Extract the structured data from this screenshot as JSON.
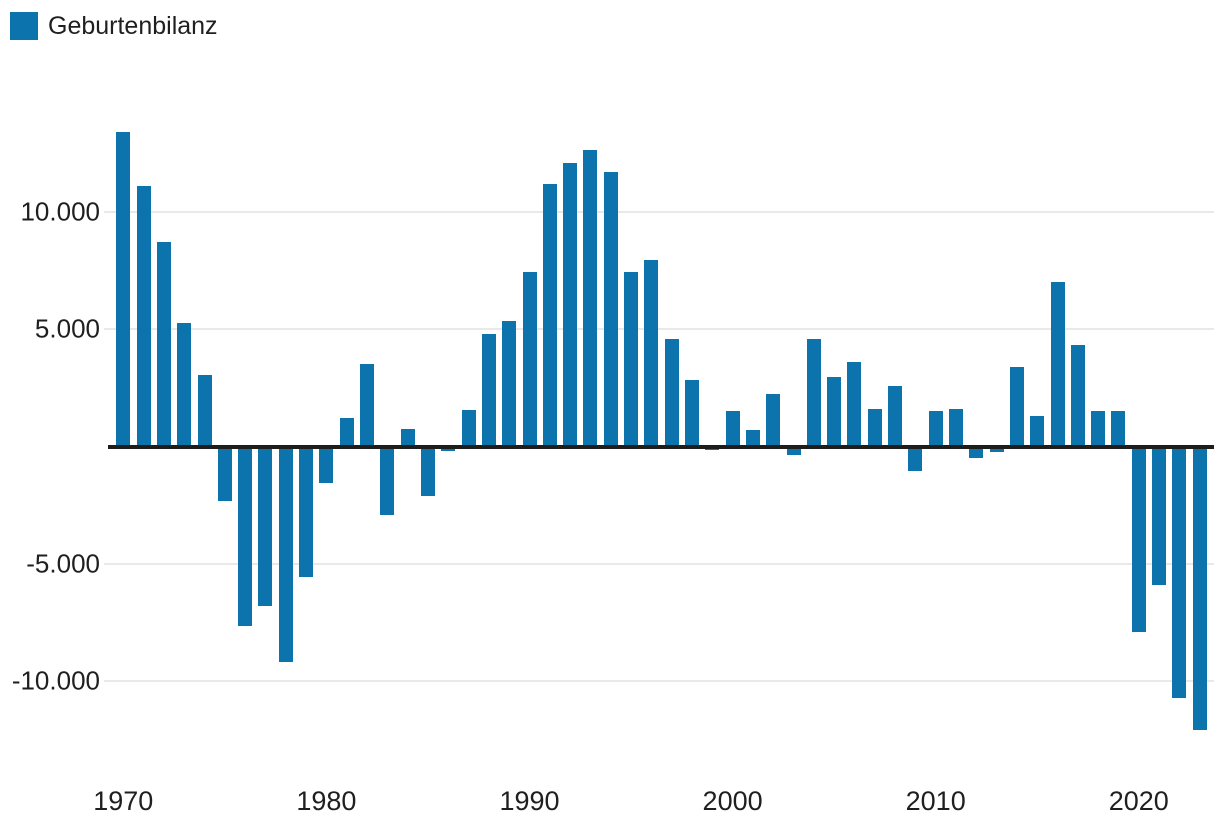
{
  "legend": {
    "label": "Geburtenbilanz",
    "swatch_color": "#0d73ad"
  },
  "colors": {
    "bar": "#0d73ad",
    "zero_axis": "#1d1d1b",
    "gridline": "#e9e9e9",
    "text": "#1f1f1f",
    "background": "#ffffff"
  },
  "chart_data": {
    "type": "bar",
    "title": "",
    "xlabel": "",
    "ylabel": "",
    "legend_position": "top-left",
    "grid": true,
    "series_name": "Geburtenbilanz",
    "x": [
      1970,
      1971,
      1972,
      1973,
      1974,
      1975,
      1976,
      1977,
      1978,
      1979,
      1980,
      1981,
      1982,
      1983,
      1984,
      1985,
      1986,
      1987,
      1988,
      1989,
      1990,
      1991,
      1992,
      1993,
      1994,
      1995,
      1996,
      1997,
      1998,
      1999,
      2000,
      2001,
      2002,
      2003,
      2004,
      2005,
      2006,
      2007,
      2008,
      2009,
      2010,
      2011,
      2012,
      2013,
      2014,
      2015,
      2016,
      2017,
      2018,
      2019,
      2020,
      2021,
      2022,
      2023
    ],
    "values": [
      13400,
      11100,
      8700,
      5250,
      3050,
      -2300,
      -7650,
      -6800,
      -9200,
      -5550,
      -1550,
      1200,
      3500,
      -2900,
      750,
      -2100,
      -200,
      1550,
      4800,
      5350,
      7450,
      11200,
      12100,
      12650,
      11700,
      7450,
      7950,
      4600,
      2850,
      -150,
      1500,
      700,
      2250,
      -350,
      4600,
      2950,
      3600,
      1600,
      2600,
      -1050,
      1500,
      1600,
      -500,
      -250,
      3400,
      1300,
      7000,
      4350,
      1500,
      1500,
      -7900,
      -5900,
      -10700,
      -12100
    ],
    "ylim": [
      -12500,
      13500
    ],
    "yticks": [
      10000,
      5000,
      -5000,
      -10000
    ],
    "ytick_labels": [
      "10.000",
      "5.000",
      "-5.000",
      "-10.000"
    ],
    "xticks": [
      1970,
      1980,
      1990,
      2000,
      2010,
      2020
    ],
    "xtick_labels": [
      "1970",
      "1980",
      "1990",
      "2000",
      "2010",
      "2020"
    ]
  }
}
